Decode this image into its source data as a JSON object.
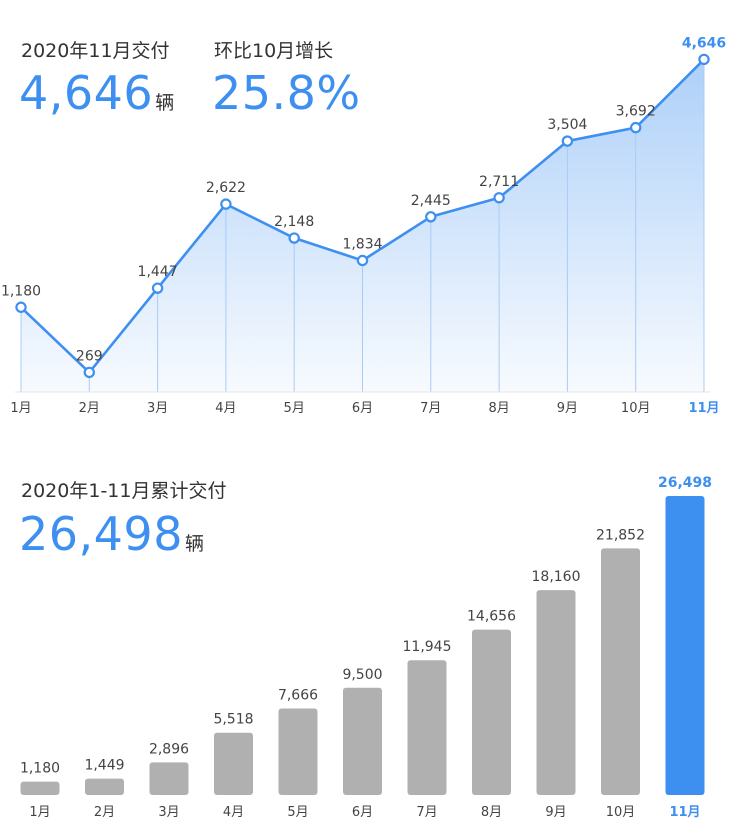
{
  "top": {
    "label1": "2020年11月交付",
    "value1": "4,646",
    "unit1": "辆",
    "label2": "环比10月增长",
    "value2": "25.8%"
  },
  "bottom": {
    "label": "2020年1-11月累计交付",
    "value": "26,498",
    "unit": "辆"
  },
  "colors": {
    "accent": "#3d8ff0",
    "bar_gray": "#b0b0b0",
    "text": "#333333"
  },
  "chart_data": [
    {
      "type": "area",
      "categories": [
        "1月",
        "2月",
        "3月",
        "4月",
        "5月",
        "6月",
        "7月",
        "8月",
        "9月",
        "10月",
        "11月"
      ],
      "values": [
        1180,
        269,
        1447,
        2622,
        2148,
        1834,
        2445,
        2711,
        3504,
        3692,
        4646
      ],
      "value_labels": [
        "1,180",
        "269",
        "1,447",
        "2,622",
        "2,148",
        "1,834",
        "2,445",
        "2,711",
        "3,504",
        "3,692",
        "4,646"
      ],
      "highlight_index": 10,
      "markers": true,
      "grid": false
    },
    {
      "type": "bar",
      "categories": [
        "1月",
        "2月",
        "3月",
        "4月",
        "5月",
        "6月",
        "7月",
        "8月",
        "9月",
        "10月",
        "11月"
      ],
      "values": [
        1180,
        1449,
        2896,
        5518,
        7666,
        9500,
        11945,
        14656,
        18160,
        21852,
        26498
      ],
      "value_labels": [
        "1,180",
        "1,449",
        "2,896",
        "5,518",
        "7,666",
        "9,500",
        "11,945",
        "14,656",
        "18,160",
        "21,852",
        "26,498"
      ],
      "highlight_index": 10,
      "grid": false
    }
  ]
}
